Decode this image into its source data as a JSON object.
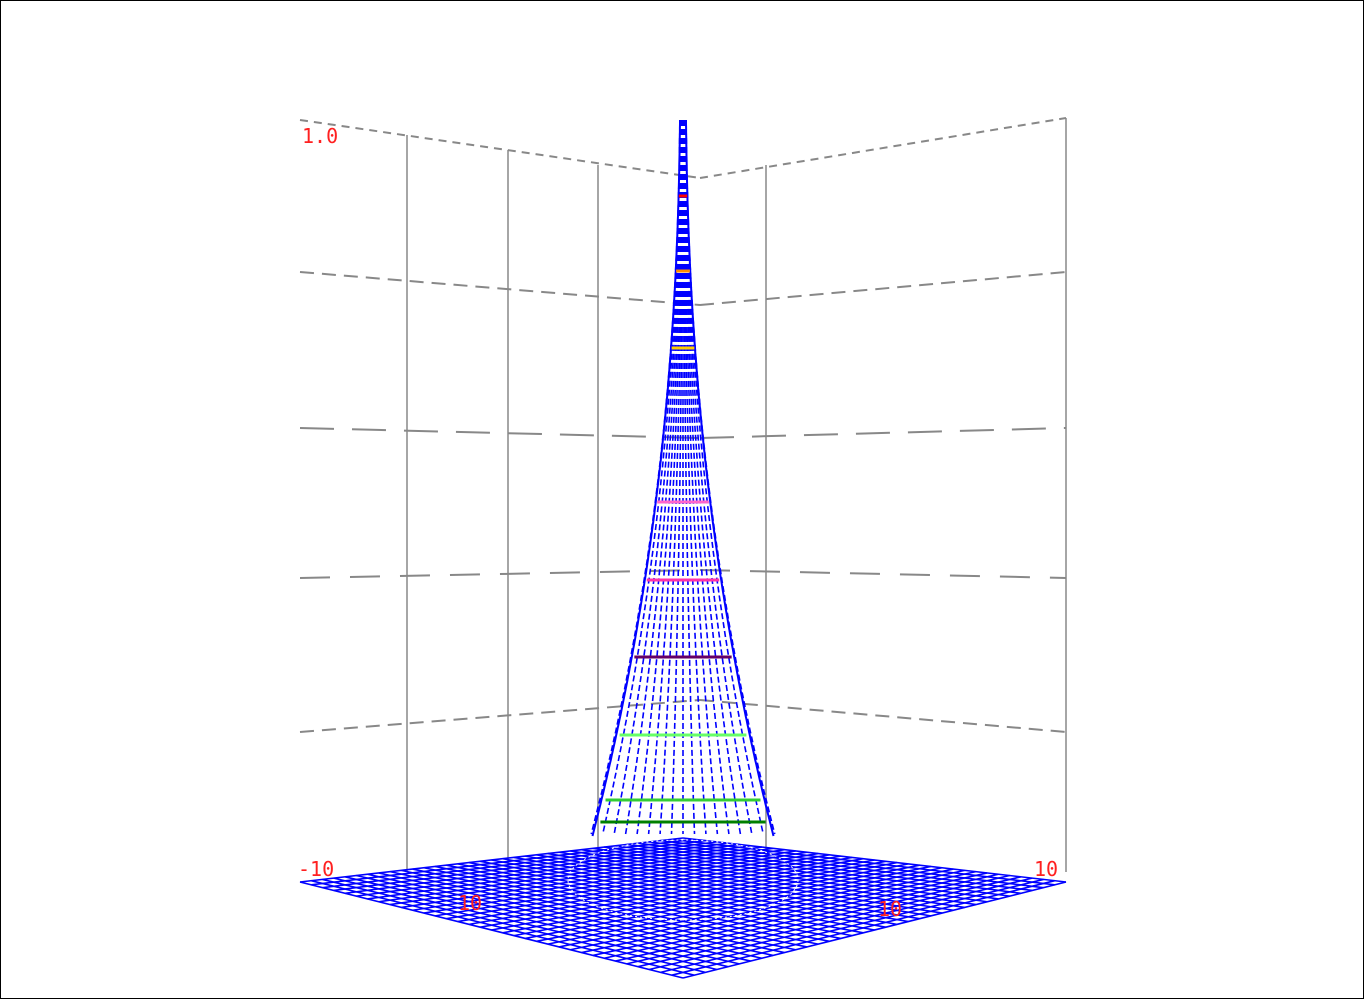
{
  "chart_data": {
    "type": "surface-3d",
    "render_style": "wireframe-mesh",
    "surface": "sharp central peak on a flat base plane",
    "z_axis_top_label": "1.0",
    "corner_labels": [
      "-10",
      "10"
    ],
    "base_labels": [
      "10",
      "10"
    ],
    "grid": true,
    "grid_style": "dashed",
    "mesh_color": "#0000ff",
    "contour_colors": [
      "#ff0000",
      "#ff8c00",
      "#ffcc00",
      "#ff66cc",
      "#ff33aa",
      "#660066",
      "#66ff66",
      "#33cc33",
      "#008000"
    ]
  }
}
